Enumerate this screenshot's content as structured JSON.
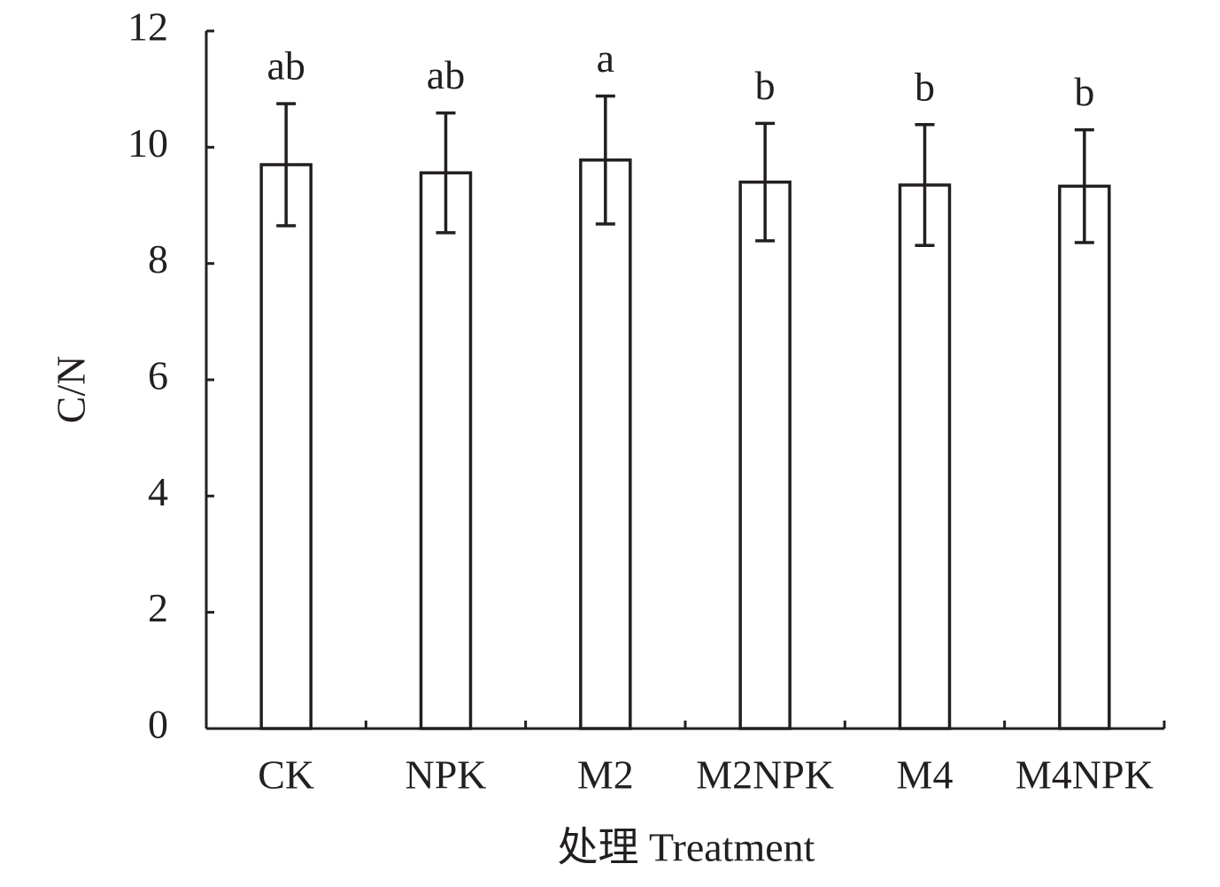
{
  "chart_data": {
    "type": "bar",
    "categories": [
      "CK",
      "NPK",
      "M2",
      "M2NPK",
      "M4",
      "M4NPK"
    ],
    "values": [
      9.7,
      9.56,
      9.78,
      9.4,
      9.35,
      9.33
    ],
    "errors": [
      1.05,
      1.03,
      1.1,
      1.01,
      1.04,
      0.97
    ],
    "significance_labels": [
      "ab",
      "ab",
      "a",
      "b",
      "b",
      "b"
    ],
    "color": "#ffffff",
    "ylim": [
      0,
      12
    ],
    "yticks": [
      0,
      2,
      4,
      6,
      8,
      10,
      12
    ],
    "y_label": "C/N",
    "x_label": "处理 Treatment"
  }
}
